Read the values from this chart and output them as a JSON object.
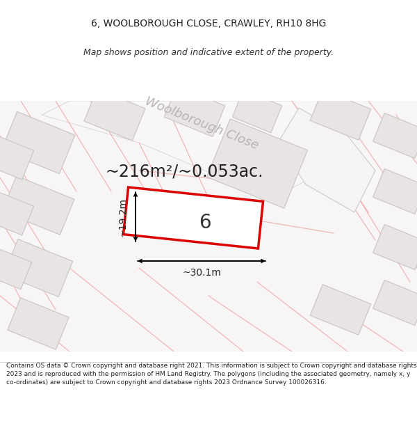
{
  "title": "6, WOOLBOROUGH CLOSE, CRAWLEY, RH10 8HG",
  "subtitle": "Map shows position and indicative extent of the property.",
  "area_text": "~216m²/~0.053ac.",
  "property_number": "6",
  "width_label": "~30.1m",
  "height_label": "~19.2m",
  "street_label": "Woolborough Close",
  "footer": "Contains OS data © Crown copyright and database right 2021. This information is subject to Crown copyright and database rights 2023 and is reproduced with the permission of HM Land Registry. The polygons (including the associated geometry, namely x, y co-ordinates) are subject to Crown copyright and database rights 2023 Ordnance Survey 100026316.",
  "bg_color": "#ffffff",
  "map_bg": "#f7f5f5",
  "plot_fill": "#ffffff",
  "plot_edge": "#dd0000",
  "building_fill": "#e8e4e4",
  "building_edge": "#c8c4c4",
  "pink_line": "#f0a8a8",
  "road_fill": "#ffffff",
  "street_color": "#b8b4b4",
  "title_fontsize": 10,
  "subtitle_fontsize": 9,
  "area_fontsize": 17,
  "dim_fontsize": 10,
  "street_fontsize": 13,
  "prop_num_fontsize": 20
}
